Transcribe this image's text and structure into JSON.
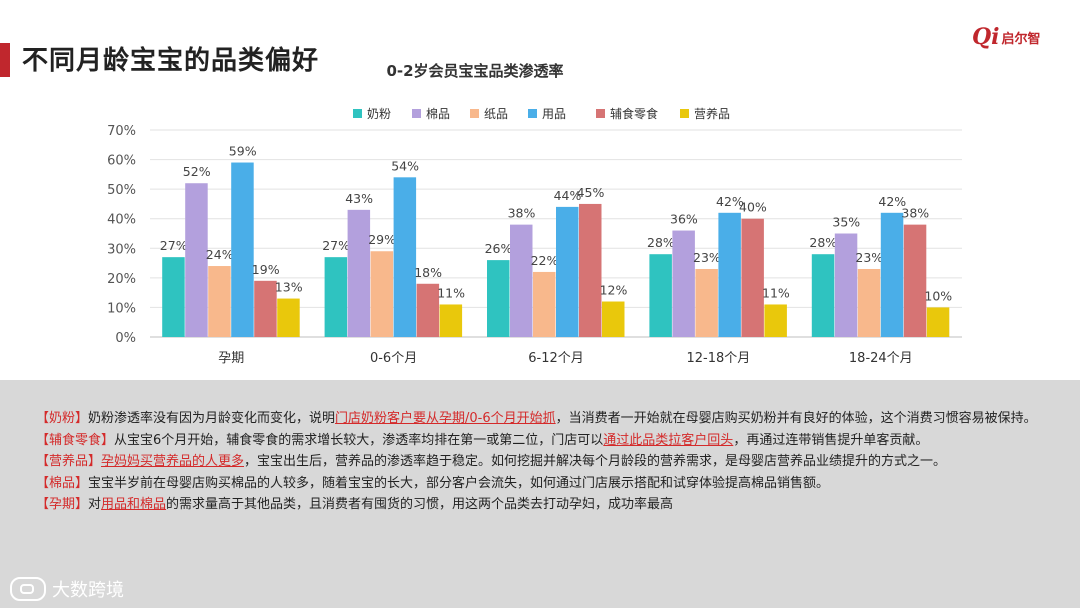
{
  "header": {
    "title": "不同月龄宝宝的品类偏好",
    "logo_text": "启尔智",
    "logo_mark": "Qi"
  },
  "colors": {
    "accent": "#c0272d",
    "series": [
      "#2fc3c0",
      "#b3a0dd",
      "#f8b88c",
      "#4aaee8",
      "#d67474",
      "#e9c80c"
    ]
  },
  "chart_data": {
    "type": "bar",
    "title": "0-2岁会员宝宝品类渗透率",
    "categories": [
      "孕期",
      "0-6个月",
      "6-12个月",
      "12-18个月",
      "18-24个月"
    ],
    "series": [
      {
        "name": "奶粉",
        "values": [
          27,
          27,
          26,
          28,
          28
        ]
      },
      {
        "name": "棉品",
        "values": [
          52,
          43,
          38,
          36,
          35
        ]
      },
      {
        "name": "纸品",
        "values": [
          24,
          29,
          22,
          23,
          23
        ]
      },
      {
        "name": "用品",
        "values": [
          59,
          54,
          44,
          42,
          42
        ]
      },
      {
        "name": "辅食零食",
        "values": [
          19,
          18,
          45,
          40,
          38
        ]
      },
      {
        "name": "营养品",
        "values": [
          13,
          11,
          12,
          11,
          10
        ]
      }
    ],
    "ylim": [
      0,
      70
    ],
    "yticks": [
      "0%",
      "10%",
      "20%",
      "30%",
      "40%",
      "50%",
      "60%",
      "70%"
    ],
    "value_suffix": "%",
    "legend_position": "top",
    "grid": true
  },
  "notes": [
    {
      "tag": "【奶粉】",
      "parts": [
        {
          "t": "奶粉渗透率没有因为月龄变化而变化，说明",
          "h": false
        },
        {
          "t": "门店奶粉客户要从孕期/0-6个月开始抓",
          "h": true
        },
        {
          "t": "，当消费者一开始就在母婴店购买奶粉并有良好的体验，这个消费习惯容易被保持。",
          "h": false
        }
      ]
    },
    {
      "tag": "【辅食零食】",
      "parts": [
        {
          "t": "从宝宝6个月开始，辅食零食的需求增长较大，渗透率均排在第一或第二位，门店可以",
          "h": false
        },
        {
          "t": "通过此品类拉客户回头",
          "h": true
        },
        {
          "t": "，再通过连带销售提升单客贡献。",
          "h": false
        }
      ]
    },
    {
      "tag": "【营养品】",
      "parts": [
        {
          "t": "孕妈妈买营养品的人更多",
          "h": true
        },
        {
          "t": "，宝宝出生后，营养品的渗透率趋于稳定。如何挖掘并解决每个月龄段的营养需求，是母婴店营养品业绩提升的方式之一。",
          "h": false
        }
      ]
    },
    {
      "tag": "【棉品】",
      "parts": [
        {
          "t": "宝宝半岁前在母婴店购买棉品的人较多，随着宝宝的长大，部分客户会流失，如何通过门店展示搭配和试穿体验提高棉品销售额。",
          "h": false
        }
      ]
    },
    {
      "tag": "【孕期】",
      "parts": [
        {
          "t": "对",
          "h": false
        },
        {
          "t": "用品和棉品",
          "h": true
        },
        {
          "t": "的需求量高于其他品类，且消费者有囤货的习惯，用这两个品类去打动孕妇，成功率最高",
          "h": false
        }
      ]
    }
  ],
  "footer": {
    "brand": "大数跨境"
  }
}
